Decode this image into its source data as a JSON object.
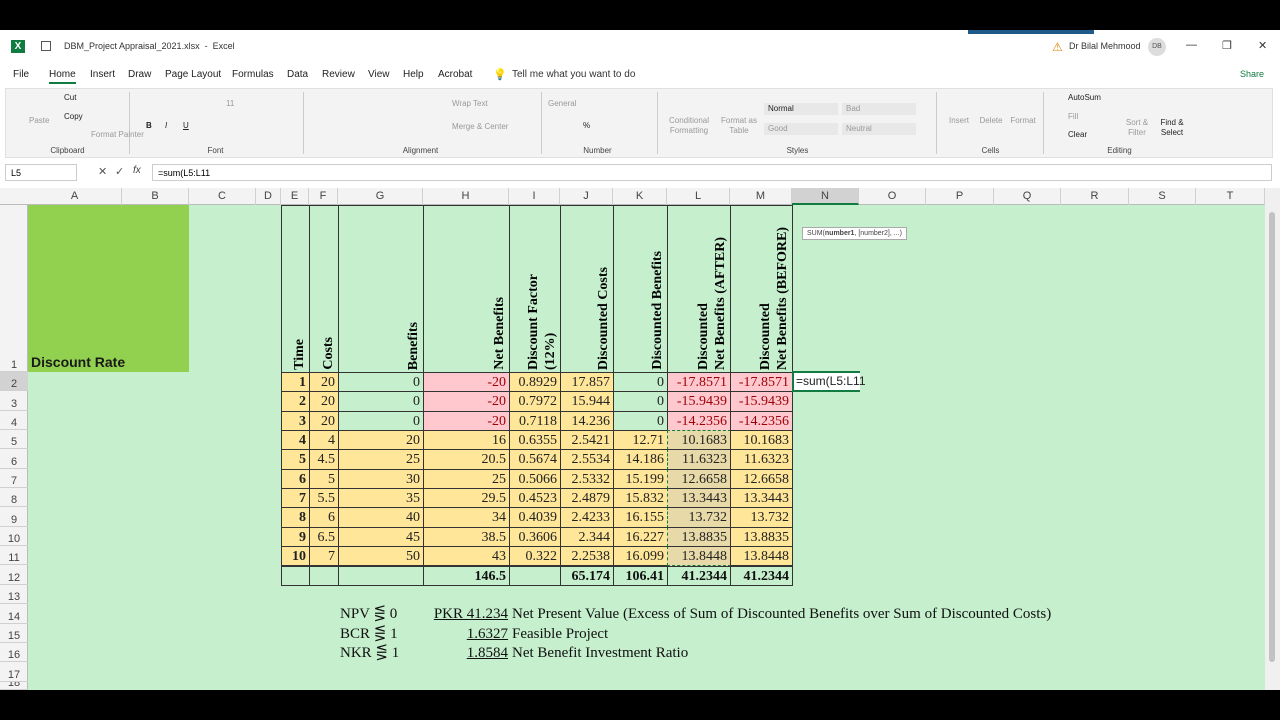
{
  "title_bar": {
    "app_icon": "X",
    "file_name": "DBM_Project Appraisal_2021.xlsx  -  Excel",
    "user": "Dr Bilal Mehmood",
    "initials": "DB"
  },
  "menu": {
    "tabs": [
      "File",
      "Home",
      "Insert",
      "Draw",
      "Page Layout",
      "Formulas",
      "Data",
      "Review",
      "View",
      "Help",
      "Acrobat"
    ],
    "search": "Tell me what you want to do",
    "share": "Share"
  },
  "ribbon": {
    "groups": [
      {
        "name": "Clipboard",
        "items": [
          "Paste",
          "Cut",
          "Copy",
          "Format Painter"
        ]
      },
      {
        "name": "Font",
        "items": [
          "B",
          "I",
          "U",
          "11"
        ]
      },
      {
        "name": "Alignment",
        "items": [
          "Wrap Text",
          "Merge & Center"
        ]
      },
      {
        "name": "Number",
        "items": [
          "General",
          "%"
        ]
      },
      {
        "name": "Styles",
        "items": [
          "Conditional\nFormatting",
          "Format as\nTable",
          "Normal",
          "Bad",
          "Good",
          "Neutral"
        ]
      },
      {
        "name": "Cells",
        "items": [
          "Insert",
          "Delete",
          "Format"
        ]
      },
      {
        "name": "Editing",
        "items": [
          "AutoSum",
          "Fill",
          "Clear",
          "Sort &\nFilter",
          "Find &\nSelect"
        ]
      }
    ]
  },
  "formula_bar": {
    "name_box": "L5",
    "fx": "fx",
    "formula": "=sum(L5:L11"
  },
  "columns": [
    "A",
    "B",
    "C",
    "D",
    "E",
    "F",
    "G",
    "H",
    "I",
    "J",
    "K",
    "L",
    "M",
    "N",
    "O",
    "P",
    "Q",
    "R",
    "S",
    "T"
  ],
  "rows": [
    1,
    2,
    3,
    4,
    5,
    6,
    7,
    8,
    9,
    10,
    11,
    12,
    13,
    14,
    15,
    16,
    17,
    18
  ],
  "sheet": {
    "label": "Discount Rate",
    "headers": [
      "Time",
      "Costs",
      "Benefits",
      "Net Benefits",
      "Discount Factor\n(12%)",
      "Discounted Costs",
      "Discounted Benefits",
      "Discounted\nNet Benefits (AFTER)",
      "Discounted\nNet Benefits (BEFORE)"
    ],
    "data": [
      [
        "1",
        "20",
        "0",
        "-20",
        "0.8929",
        "17.857",
        "0",
        "-17.8571",
        "-17.8571"
      ],
      [
        "2",
        "20",
        "0",
        "-20",
        "0.7972",
        "15.944",
        "0",
        "-15.9439",
        "-15.9439"
      ],
      [
        "3",
        "20",
        "0",
        "-20",
        "0.7118",
        "14.236",
        "0",
        "-14.2356",
        "-14.2356"
      ],
      [
        "4",
        "4",
        "20",
        "16",
        "0.6355",
        "2.5421",
        "12.71",
        "10.1683",
        "10.1683"
      ],
      [
        "5",
        "4.5",
        "25",
        "20.5",
        "0.5674",
        "2.5534",
        "14.186",
        "11.6323",
        "11.6323"
      ],
      [
        "6",
        "5",
        "30",
        "25",
        "0.5066",
        "2.5332",
        "15.199",
        "12.6658",
        "12.6658"
      ],
      [
        "7",
        "5.5",
        "35",
        "29.5",
        "0.4523",
        "2.4879",
        "15.832",
        "13.3443",
        "13.3443"
      ],
      [
        "8",
        "6",
        "40",
        "34",
        "0.4039",
        "2.4233",
        "16.155",
        "13.732",
        "13.732"
      ],
      [
        "9",
        "6.5",
        "45",
        "38.5",
        "0.3606",
        "2.344",
        "16.227",
        "13.8835",
        "13.8835"
      ],
      [
        "10",
        "7",
        "50",
        "43",
        "0.322",
        "2.2538",
        "16.099",
        "13.8448",
        "13.8448"
      ]
    ],
    "totals": [
      "146.5",
      "65.174",
      "106.41",
      "41.2344",
      "41.2344"
    ],
    "formula_cell": "=sum(L5:L11",
    "tooltip": [
      "SUM(",
      "number1",
      ", [number2], ...)"
    ],
    "notes": [
      {
        "label": "NPV ⋚ 0",
        "value": "PKR 41.234",
        "text": "Net Present Value (Excess of Sum of Discounted Benefits over Sum of Discounted Costs)"
      },
      {
        "label": "BCR ⋚ 1",
        "value": "1.6327",
        "text": "Feasible Project"
      },
      {
        "label": "NKR ⋚ 1",
        "value": "1.8584",
        "text": "Net Benefit Investment Ratio"
      }
    ]
  }
}
